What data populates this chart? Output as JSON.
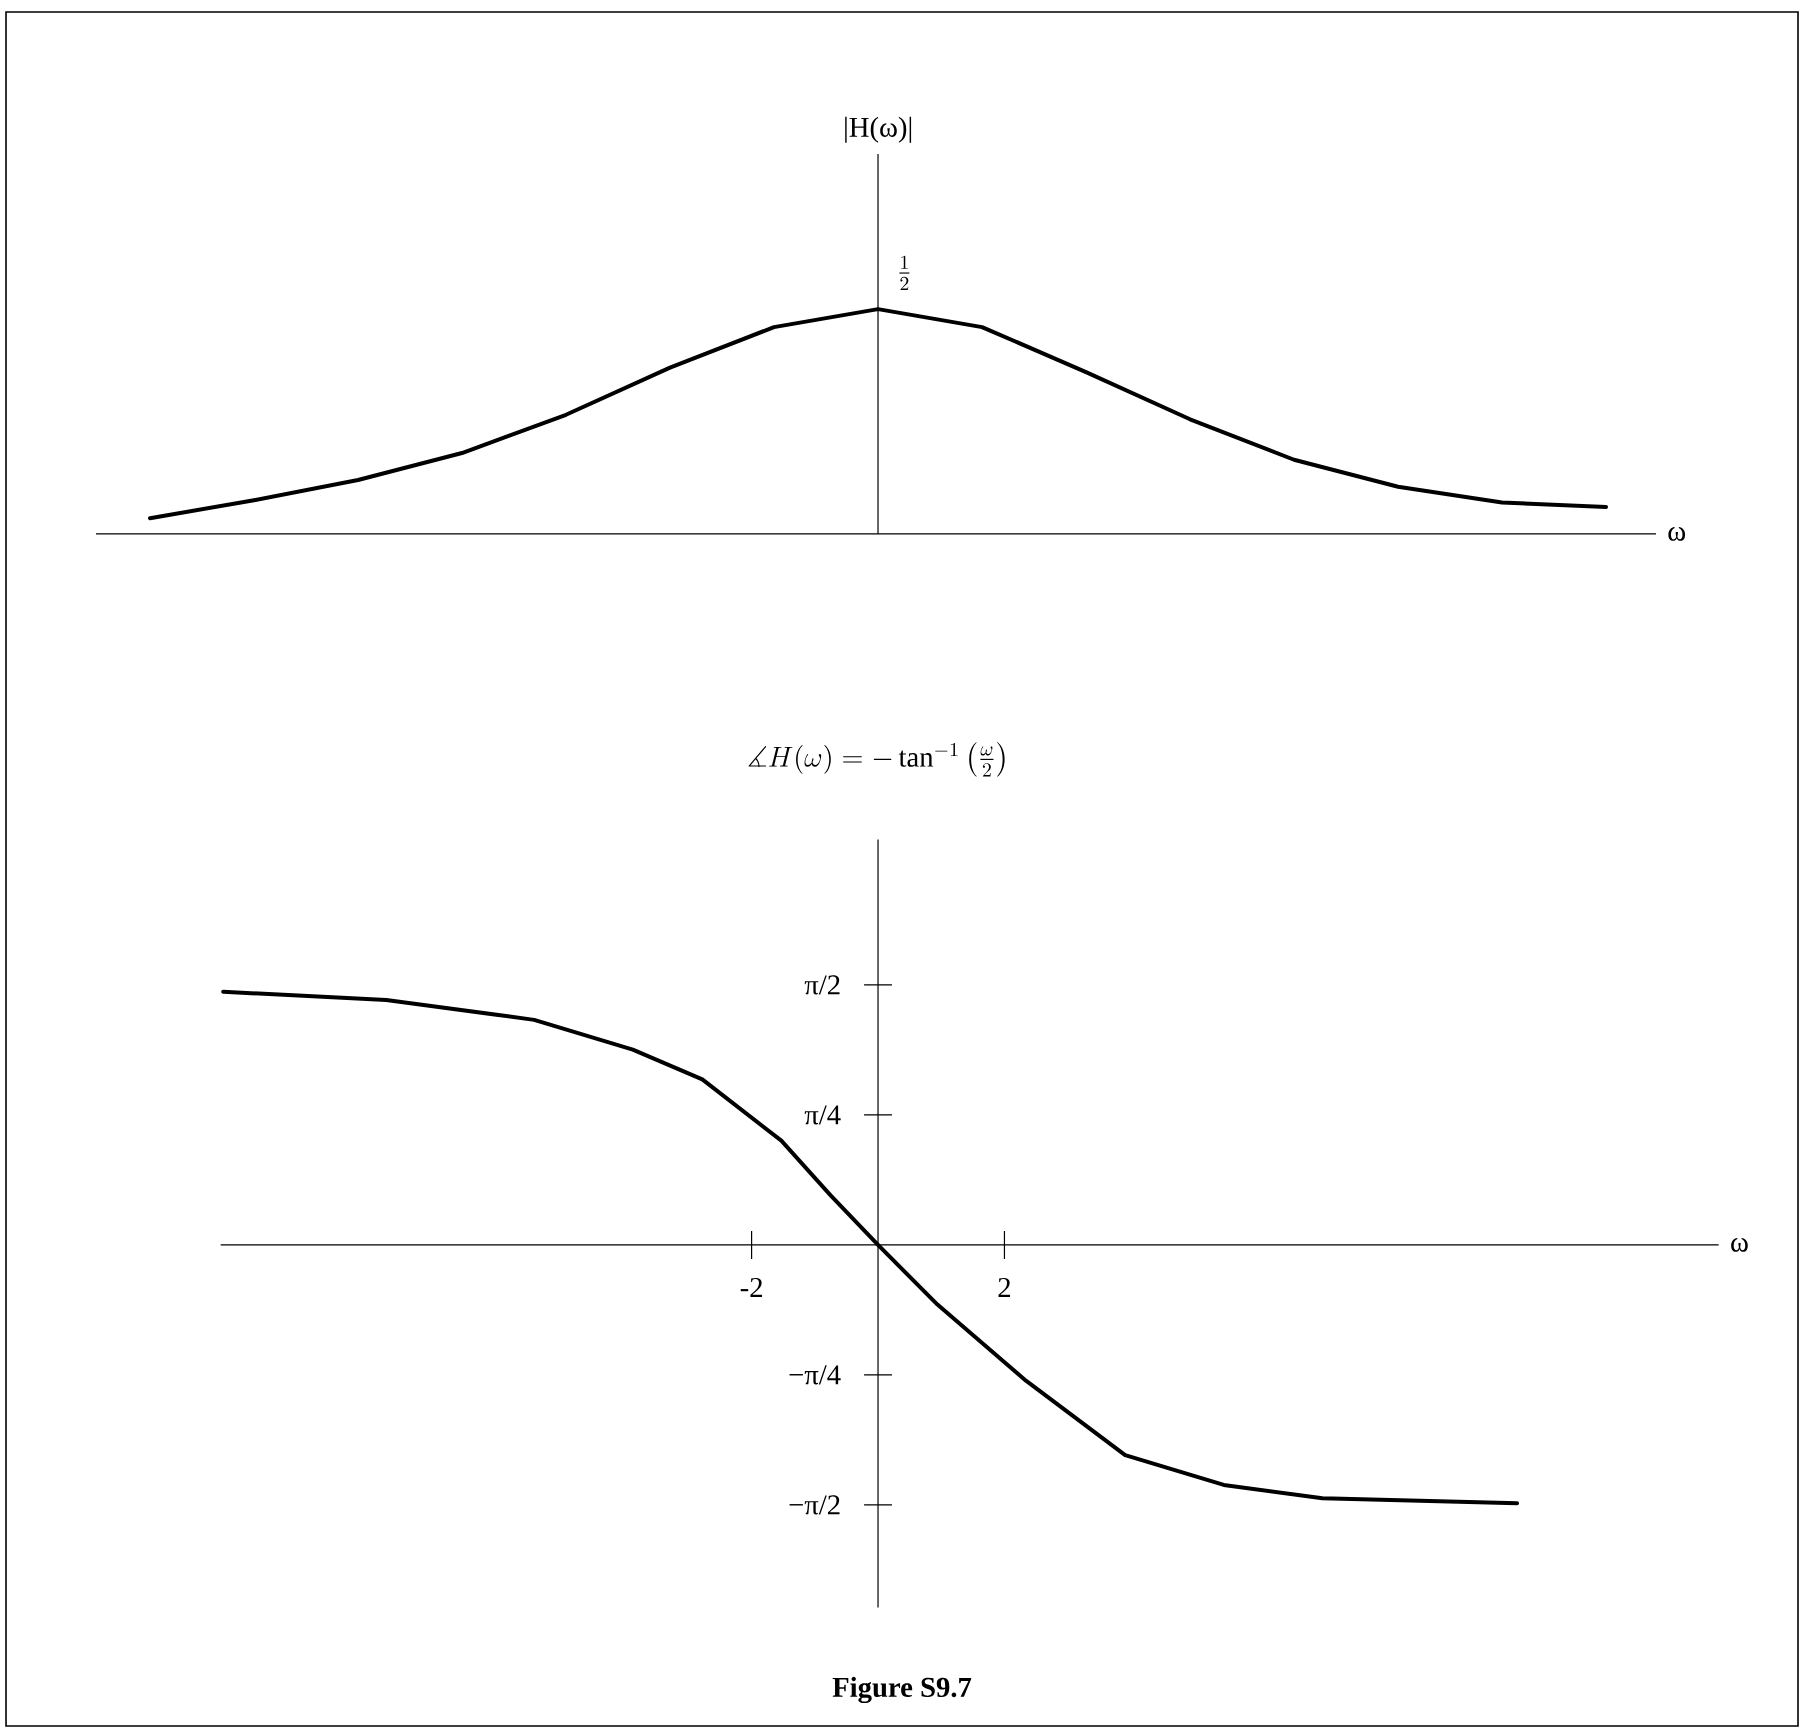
{
  "chart_data": [
    {
      "type": "line",
      "color": "#000000",
      "ylabel": "|H(ω)|",
      "xlabel": "ω",
      "ylim": [
        0,
        0.845
      ],
      "categories": [
        null,
        null,
        null,
        null,
        null,
        null,
        null,
        null,
        null,
        null,
        null,
        null,
        null,
        null,
        null
      ],
      "values": [
        0.035,
        0.075,
        0.12,
        0.18,
        0.265,
        0.37,
        0.46,
        0.5,
        0.46,
        0.36,
        0.255,
        0.165,
        0.105,
        0.07,
        0.06
      ],
      "value_labels": [
        null,
        null,
        null,
        null,
        null,
        null,
        null,
        "\\frac{1}{2}",
        null,
        null,
        null,
        null,
        null,
        null,
        null
      ]
    },
    {
      "type": "line",
      "color": "#000000",
      "title": "\\measuredangle H(\\omega) = -\\tan^{-1}\\left(\\frac{\\omega}{2}\\right)",
      "xlabel": "ω",
      "x": [
        -10.36,
        -7.78,
        -5.44,
        -3.88,
        -2.78,
        -1.53,
        -0.75,
        0,
        0.94,
        2.34,
        3.91,
        5.47,
        7.03,
        10.11
      ],
      "values": [
        1.53,
        1.48,
        1.36,
        1.18,
        1.0,
        0.63,
        0.3,
        0,
        -0.36,
        -0.82,
        -1.27,
        -1.45,
        -1.53,
        -1.56
      ],
      "xlim": [
        -10.4,
        13.3
      ],
      "ylim": [
        -2.19,
        2.45
      ],
      "xticks": [
        -2,
        2
      ],
      "yticks": [
        {
          "value": 1.570796,
          "label": "π/2"
        },
        {
          "value": 0.785398,
          "label": "π/4"
        },
        {
          "value": -0.785398,
          "label": "−π/4"
        },
        {
          "value": -1.570796,
          "label": "−π/2"
        }
      ],
      "annotations": [
        "Figure S9.7"
      ]
    }
  ]
}
